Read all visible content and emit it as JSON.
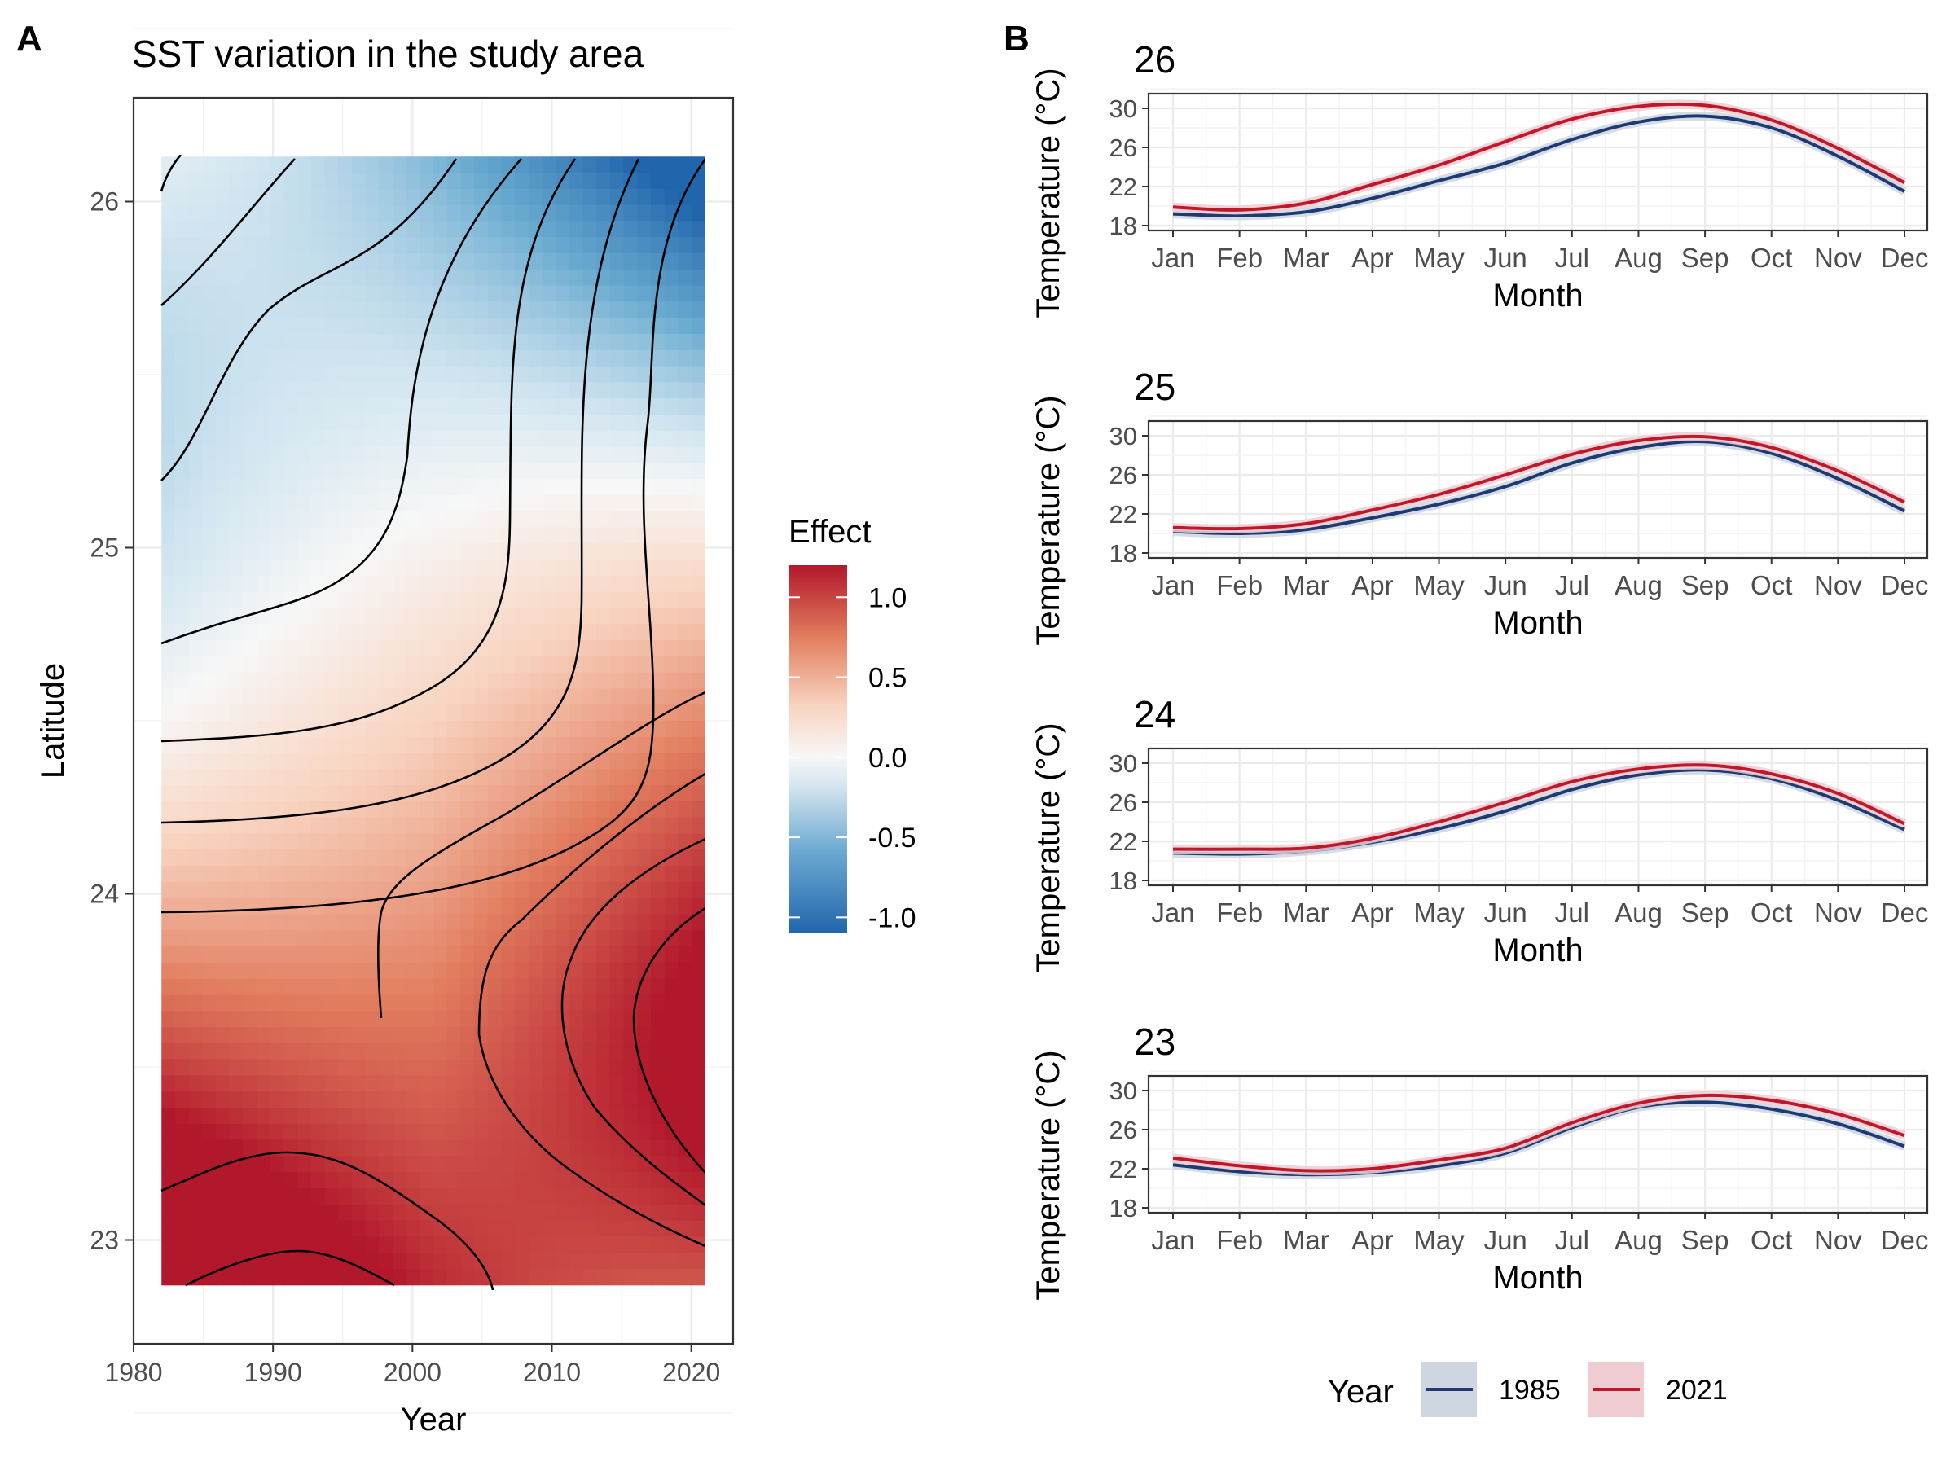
{
  "figure": {
    "panel_a_tag": "A",
    "panel_b_tag": "B"
  },
  "colors": {
    "negative": "#2166ac",
    "neutral": "#f7f7f7",
    "positive": "#b2182b",
    "series_1985": "#1f3a73",
    "series_2021": "#c0182b",
    "band_1985": "#cdd6e1",
    "band_2021": "#eeccd2",
    "grid": "#ebebeb",
    "axis_text": "#4d4d4d"
  },
  "chart_data": [
    {
      "type": "heatmap",
      "title": "SST variation in the study area",
      "xlabel": "Year",
      "ylabel": "Latitude",
      "xlim": [
        1980,
        2023
      ],
      "ylim": [
        22.7,
        26.3
      ],
      "x_range": [
        1982,
        2021
      ],
      "y_range": [
        22.87,
        26.13
      ],
      "x_ticks": [
        1980,
        1990,
        2000,
        2010,
        2020
      ],
      "y_ticks": [
        23,
        24,
        25,
        26
      ],
      "legend": {
        "title": "Effect",
        "position": "right",
        "ticks": [
          1.0,
          0.5,
          0.0,
          -0.5,
          -1.0
        ],
        "tick_labels": [
          "1.0",
          "0.5",
          "0.0",
          "-0.5",
          "-1.0"
        ],
        "range": [
          -1.1,
          1.2
        ]
      },
      "contour_lines": true,
      "grid": true
    },
    {
      "type": "line",
      "legend": {
        "title": "Year",
        "position": "bottom",
        "entries": [
          "1985",
          "2021"
        ]
      },
      "xlabel": "Month",
      "ylabel": "Temperature (°C)",
      "categories": [
        "Jan",
        "Feb",
        "Mar",
        "Apr",
        "May",
        "Jun",
        "Jul",
        "Aug",
        "Sep",
        "Oct",
        "Nov",
        "Dec"
      ],
      "y_ticks": [
        "30",
        "26",
        "22",
        "18"
      ],
      "ylim": [
        17.5,
        31.5
      ],
      "grid": true,
      "panels": [
        {
          "title": "26",
          "series": [
            {
              "name": "1985",
              "values": [
                19.2,
                19.0,
                19.4,
                20.8,
                22.6,
                24.4,
                26.8,
                28.6,
                29.2,
                28.0,
                25.1,
                21.5
              ]
            },
            {
              "name": "2021",
              "values": [
                19.9,
                19.6,
                20.3,
                22.2,
                24.2,
                26.6,
                28.9,
                30.2,
                30.3,
                28.8,
                25.9,
                22.4
              ]
            }
          ]
        },
        {
          "title": "25",
          "series": [
            {
              "name": "1985",
              "values": [
                20.2,
                20.0,
                20.4,
                21.6,
                23.0,
                24.8,
                27.2,
                28.8,
                29.4,
                28.2,
                25.6,
                22.3
              ]
            },
            {
              "name": "2021",
              "values": [
                20.6,
                20.5,
                21.0,
                22.4,
                24.0,
                26.0,
                28.1,
                29.5,
                29.9,
                28.8,
                26.4,
                23.2
              ]
            }
          ]
        },
        {
          "title": "24",
          "series": [
            {
              "name": "1985",
              "values": [
                20.8,
                20.7,
                21.0,
                21.9,
                23.3,
                25.1,
                27.3,
                28.8,
                29.3,
                28.4,
                26.2,
                23.2
              ]
            },
            {
              "name": "2021",
              "values": [
                21.2,
                21.2,
                21.3,
                22.3,
                24.0,
                26.0,
                28.1,
                29.4,
                29.8,
                28.9,
                26.9,
                23.8
              ]
            }
          ]
        },
        {
          "title": "23",
          "series": [
            {
              "name": "1985",
              "values": [
                22.4,
                21.7,
                21.4,
                21.6,
                22.3,
                23.6,
                26.2,
                28.3,
                28.8,
                28.1,
                26.6,
                24.3
              ]
            },
            {
              "name": "2021",
              "values": [
                23.1,
                22.3,
                21.8,
                22.0,
                22.9,
                24.1,
                26.7,
                28.7,
                29.5,
                29.0,
                27.6,
                25.4
              ]
            }
          ]
        }
      ]
    }
  ]
}
